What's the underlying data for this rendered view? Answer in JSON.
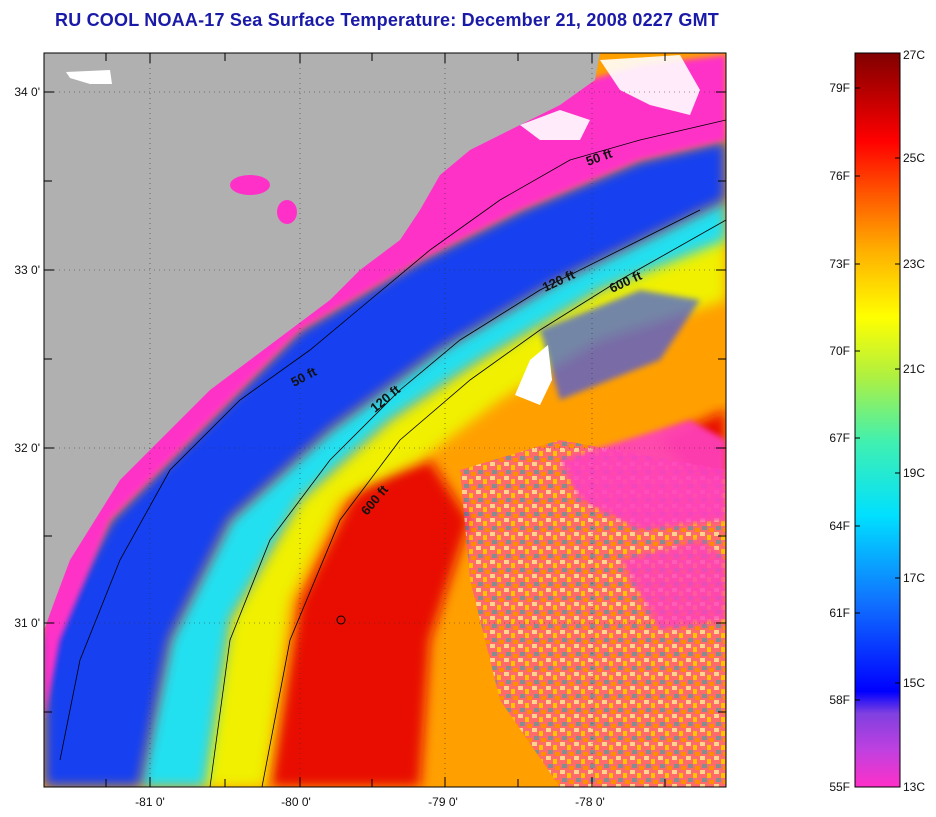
{
  "title": "RU COOL  NOAA-17  Sea Surface Temperature:  December 21, 2008 0227 GMT",
  "map": {
    "lon_ticks": [
      "-81 0'",
      "-80 0'",
      "-79 0'",
      "-78 0'"
    ],
    "lat_ticks": [
      "34 0'",
      "33 0'",
      "32 0'",
      "31 0'"
    ],
    "contour_labels": [
      "50 ft",
      "120 ft",
      "600 ft",
      "50 ft",
      "120 ft",
      "600 ft"
    ],
    "land_color": "#b0b0b0",
    "cloud_color": "#ffffff"
  },
  "colorbar": {
    "fahrenheit_labels": [
      "79F",
      "76F",
      "73F",
      "70F",
      "67F",
      "64F",
      "61F",
      "58F",
      "55F"
    ],
    "celsius_labels": [
      "27C",
      "25C",
      "23C",
      "21C",
      "19C",
      "17C",
      "15C",
      "13C"
    ],
    "range_c": [
      13,
      27
    ],
    "range_f": [
      55,
      80
    ]
  }
}
